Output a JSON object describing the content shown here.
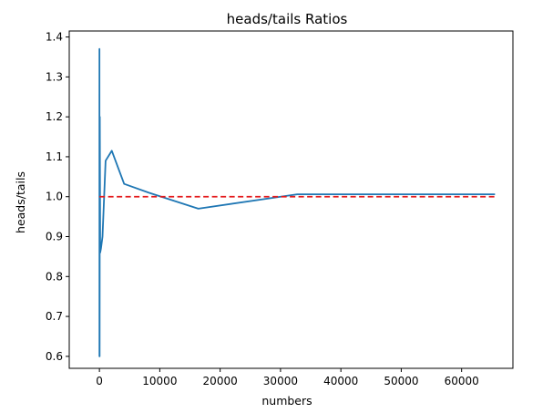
{
  "chart_data": {
    "type": "line",
    "title": "heads/tails Ratios",
    "xlabel": "numbers",
    "ylabel": "heads/tails",
    "xlim": [
      -5000,
      68500
    ],
    "ylim": [
      0.57,
      1.415
    ],
    "x_ticks": [
      0,
      10000,
      20000,
      30000,
      40000,
      50000,
      60000
    ],
    "x_tick_labels": [
      "0",
      "10000",
      "20000",
      "30000",
      "40000",
      "50000",
      "60000"
    ],
    "y_ticks": [
      0.6,
      0.7,
      0.8,
      0.9,
      1.0,
      1.1,
      1.2,
      1.3,
      1.4
    ],
    "y_tick_labels": [
      "0.6",
      "0.7",
      "0.8",
      "0.9",
      "1.0",
      "1.1",
      "1.2",
      "1.3",
      "1.4"
    ],
    "grid": false,
    "series": [
      {
        "color": "#1f77b4",
        "style": "solid",
        "points": [
          [
            2,
            1.0
          ],
          [
            4,
            1.37
          ],
          [
            8,
            0.6
          ],
          [
            16,
            0.78
          ],
          [
            32,
            0.6
          ],
          [
            64,
            1.2
          ],
          [
            128,
            0.86
          ],
          [
            256,
            0.87
          ],
          [
            512,
            0.9
          ],
          [
            1024,
            1.09
          ],
          [
            2048,
            1.115
          ],
          [
            4096,
            1.032
          ],
          [
            8192,
            1.01
          ],
          [
            16384,
            0.97
          ],
          [
            32768,
            1.006
          ],
          [
            65536,
            1.006
          ]
        ]
      },
      {
        "color": "#e41a1c",
        "style": "dashed",
        "points": [
          [
            0,
            1.0
          ],
          [
            65536,
            1.0
          ]
        ]
      }
    ]
  }
}
